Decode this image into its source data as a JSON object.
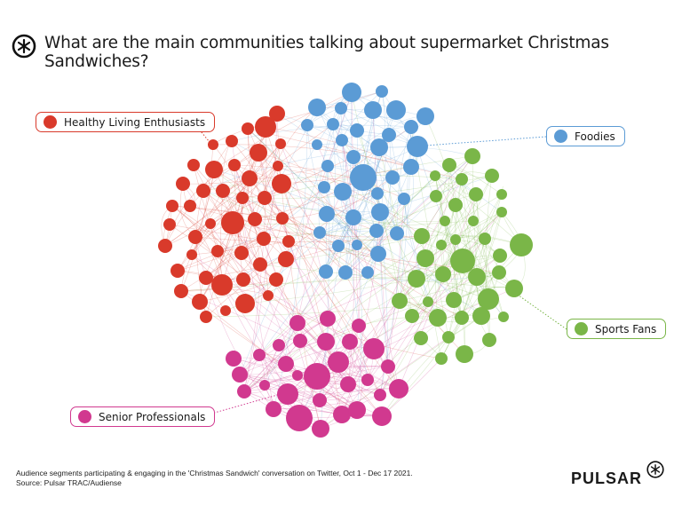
{
  "header": {
    "title": "What are the main communities talking about supermarket Christmas Sandwiches?",
    "logo_icon": "pulsar-asterisk-icon"
  },
  "communities": [
    {
      "name": "Healthy Living Enthusiasts",
      "color": "#d93a2b"
    },
    {
      "name": "Foodies",
      "color": "#5b9bd5"
    },
    {
      "name": "Sports Fans",
      "color": "#7ab648"
    },
    {
      "name": "Senior Professionals",
      "color": "#d1398f"
    }
  ],
  "footer": {
    "caption": "Audience segments participating & engaging in the 'Christmas Sandwich' conversation on Twitter, Oct 1  - Dec 17 2021.",
    "source": "Source: Pulsar TRAC/Audiense",
    "brand": "PULSAR"
  }
}
